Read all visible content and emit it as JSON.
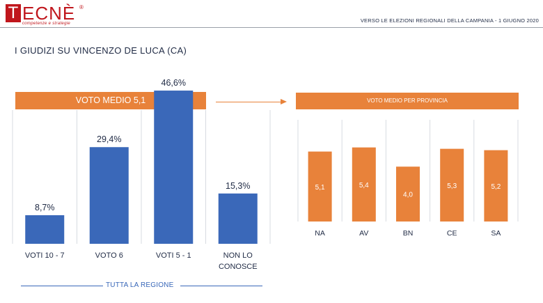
{
  "header": {
    "logo_first": "T",
    "logo_rest": "ECNÈ",
    "logo_reg": "®",
    "logo_sub": "competenze e strategie",
    "subtitle": "VERSO LE ELEZIONI REGIONALI DELLA CAMPANIA - 1 GIUGNO 2020"
  },
  "page_title": "I GIUDIZI SU VINCENZO DE LUCA (CA)",
  "left_panel": {
    "banner": "VOTO MEDIO 5,1",
    "footer": "TUTTA LA REGIONE"
  },
  "right_panel": {
    "banner": "VOTO MEDIO PER PROVINCIA"
  },
  "colors": {
    "blue": "#3a68b9",
    "orange": "#e8823a",
    "brand_red": "#c0161c"
  },
  "chart_data": [
    {
      "type": "bar",
      "categories": [
        [
          "VOTI 10 - 7"
        ],
        [
          "VOTO 6"
        ],
        [
          "VOTI 5 - 1"
        ],
        [
          "NON LO",
          "CONOSCE"
        ]
      ],
      "values": [
        8.7,
        29.4,
        46.6,
        15.3
      ],
      "data_labels": [
        "8,7%",
        "29,4%",
        "46,6%",
        "15,3%"
      ],
      "title": "VOTO MEDIO 5,1",
      "unit": "%",
      "ylim": [
        0,
        50
      ],
      "color": "#3a68b9"
    },
    {
      "type": "bar",
      "categories": [
        "NA",
        "AV",
        "BN",
        "CE",
        "SA"
      ],
      "values": [
        5.1,
        5.4,
        4.0,
        5.3,
        5.2
      ],
      "data_labels": [
        "5,1",
        "5,4",
        "4,0",
        "5,3",
        "5,2"
      ],
      "title": "VOTO MEDIO PER PROVINCIA",
      "ylim": [
        0,
        6.5
      ],
      "color": "#e8823a"
    }
  ]
}
